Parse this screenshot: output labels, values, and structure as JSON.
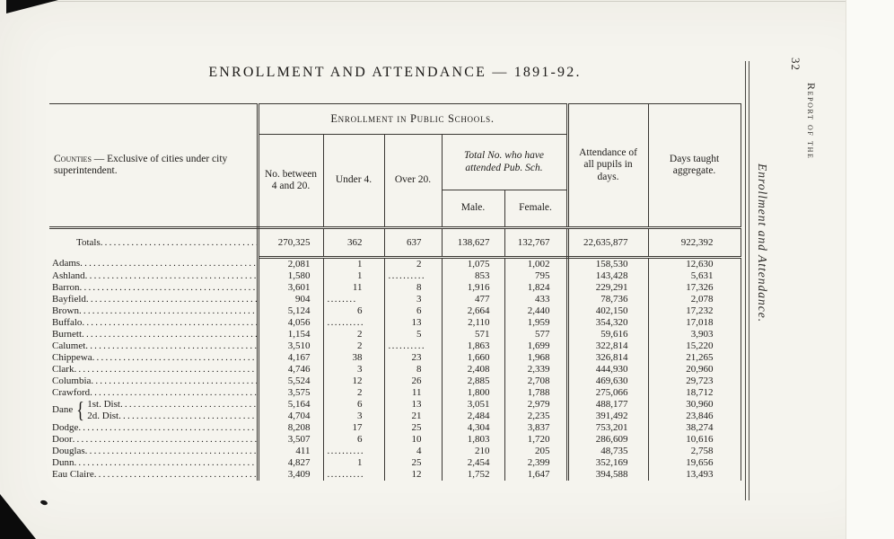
{
  "page": {
    "title": "ENROLLMENT AND ATTENDANCE — 1891-92.",
    "margin": {
      "page_number": "32",
      "running_head": "Report of the",
      "side_title": "Enrollment and Attendance."
    }
  },
  "table": {
    "counties_header_lead": "Counties",
    "counties_header_rest": " — Exclusive of cities under city superintendent.",
    "group_header": "Enrollment in Public Schools.",
    "columns": {
      "between_4_and_20": "No. between 4 and 20.",
      "under_4": "Under 4.",
      "over_20": "Over 20.",
      "total_attended": "Total No. who have attended Pub. Sch.",
      "male": "Male.",
      "female": "Female.",
      "attendance_days": "Attendance of all pupils in days.",
      "days_taught": "Days taught aggregate."
    },
    "totals": {
      "label": "Totals",
      "cells": [
        "270,325",
        "362",
        "637",
        "138,627",
        "132,767",
        "22,635,877",
        "922,392"
      ]
    },
    "rows": [
      {
        "label": "Adams",
        "cells": [
          "2,081",
          "1",
          "2",
          "1,075",
          "1,002",
          "158,530",
          "12,630"
        ]
      },
      {
        "label": "Ashland",
        "cells": [
          "1,580",
          "1",
          "..........",
          "853",
          "795",
          "143,428",
          "5,631"
        ]
      },
      {
        "label": "Barron",
        "cells": [
          "3,601",
          "11",
          "8",
          "1,916",
          "1,824",
          "229,291",
          "17,326"
        ]
      },
      {
        "label": "Bayfield",
        "cells": [
          "904",
          "........",
          "3",
          "477",
          "433",
          "78,736",
          "2,078"
        ]
      },
      {
        "label": "Brown",
        "cells": [
          "5,124",
          "6",
          "6",
          "2,664",
          "2,440",
          "402,150",
          "17,232"
        ]
      },
      {
        "label": "Buffalo",
        "cells": [
          "4,056",
          "..........",
          "13",
          "2,110",
          "1,959",
          "354,320",
          "17,018"
        ]
      },
      {
        "label": "Burnett",
        "cells": [
          "1,154",
          "2",
          "5",
          "571",
          "577",
          "59,616",
          "3,903"
        ]
      },
      {
        "label": "Calumet",
        "cells": [
          "3,510",
          "2",
          "..........",
          "1,863",
          "1,699",
          "322,814",
          "15,220"
        ]
      },
      {
        "label": "Chippewa",
        "cells": [
          "4,167",
          "38",
          "23",
          "1,660",
          "1,968",
          "326,814",
          "21,265"
        ]
      },
      {
        "label": "Clark",
        "cells": [
          "4,746",
          "3",
          "8",
          "2,408",
          "2,339",
          "444,930",
          "20,960"
        ]
      },
      {
        "label": "Columbia",
        "cells": [
          "5,524",
          "12",
          "26",
          "2,885",
          "2,708",
          "469,630",
          "29,723"
        ]
      },
      {
        "label": "Crawford",
        "cells": [
          "3,575",
          "2",
          "11",
          "1,800",
          "1,788",
          "275,066",
          "18,712"
        ]
      },
      {
        "group_start": true,
        "group_label": "Dane",
        "brace": "{",
        "label": "1st. Dist",
        "cells": [
          "5,164",
          "6",
          "13",
          "3,051",
          "2,979",
          "488,177",
          "30,960"
        ]
      },
      {
        "group_member": true,
        "label": "2d. Dist",
        "cells": [
          "4,704",
          "3",
          "21",
          "2,484",
          "2,235",
          "391,492",
          "23,846"
        ]
      },
      {
        "label": "Dodge",
        "cells": [
          "8,208",
          "17",
          "25",
          "4,304",
          "3,837",
          "753,201",
          "38,274"
        ]
      },
      {
        "label": "Door",
        "cells": [
          "3,507",
          "6",
          "10",
          "1,803",
          "1,720",
          "286,609",
          "10,616"
        ]
      },
      {
        "label": "Douglas",
        "cells": [
          "411",
          "..........",
          "4",
          "210",
          "205",
          "48,735",
          "2,758"
        ]
      },
      {
        "label": "Dunn",
        "cells": [
          "4,827",
          "1",
          "25",
          "2,454",
          "2,399",
          "352,169",
          "19,656"
        ]
      },
      {
        "label": "Eau Claire",
        "cells": [
          "3,409",
          "..........",
          "12",
          "1,752",
          "1,647",
          "394,588",
          "13,493"
        ]
      }
    ]
  }
}
